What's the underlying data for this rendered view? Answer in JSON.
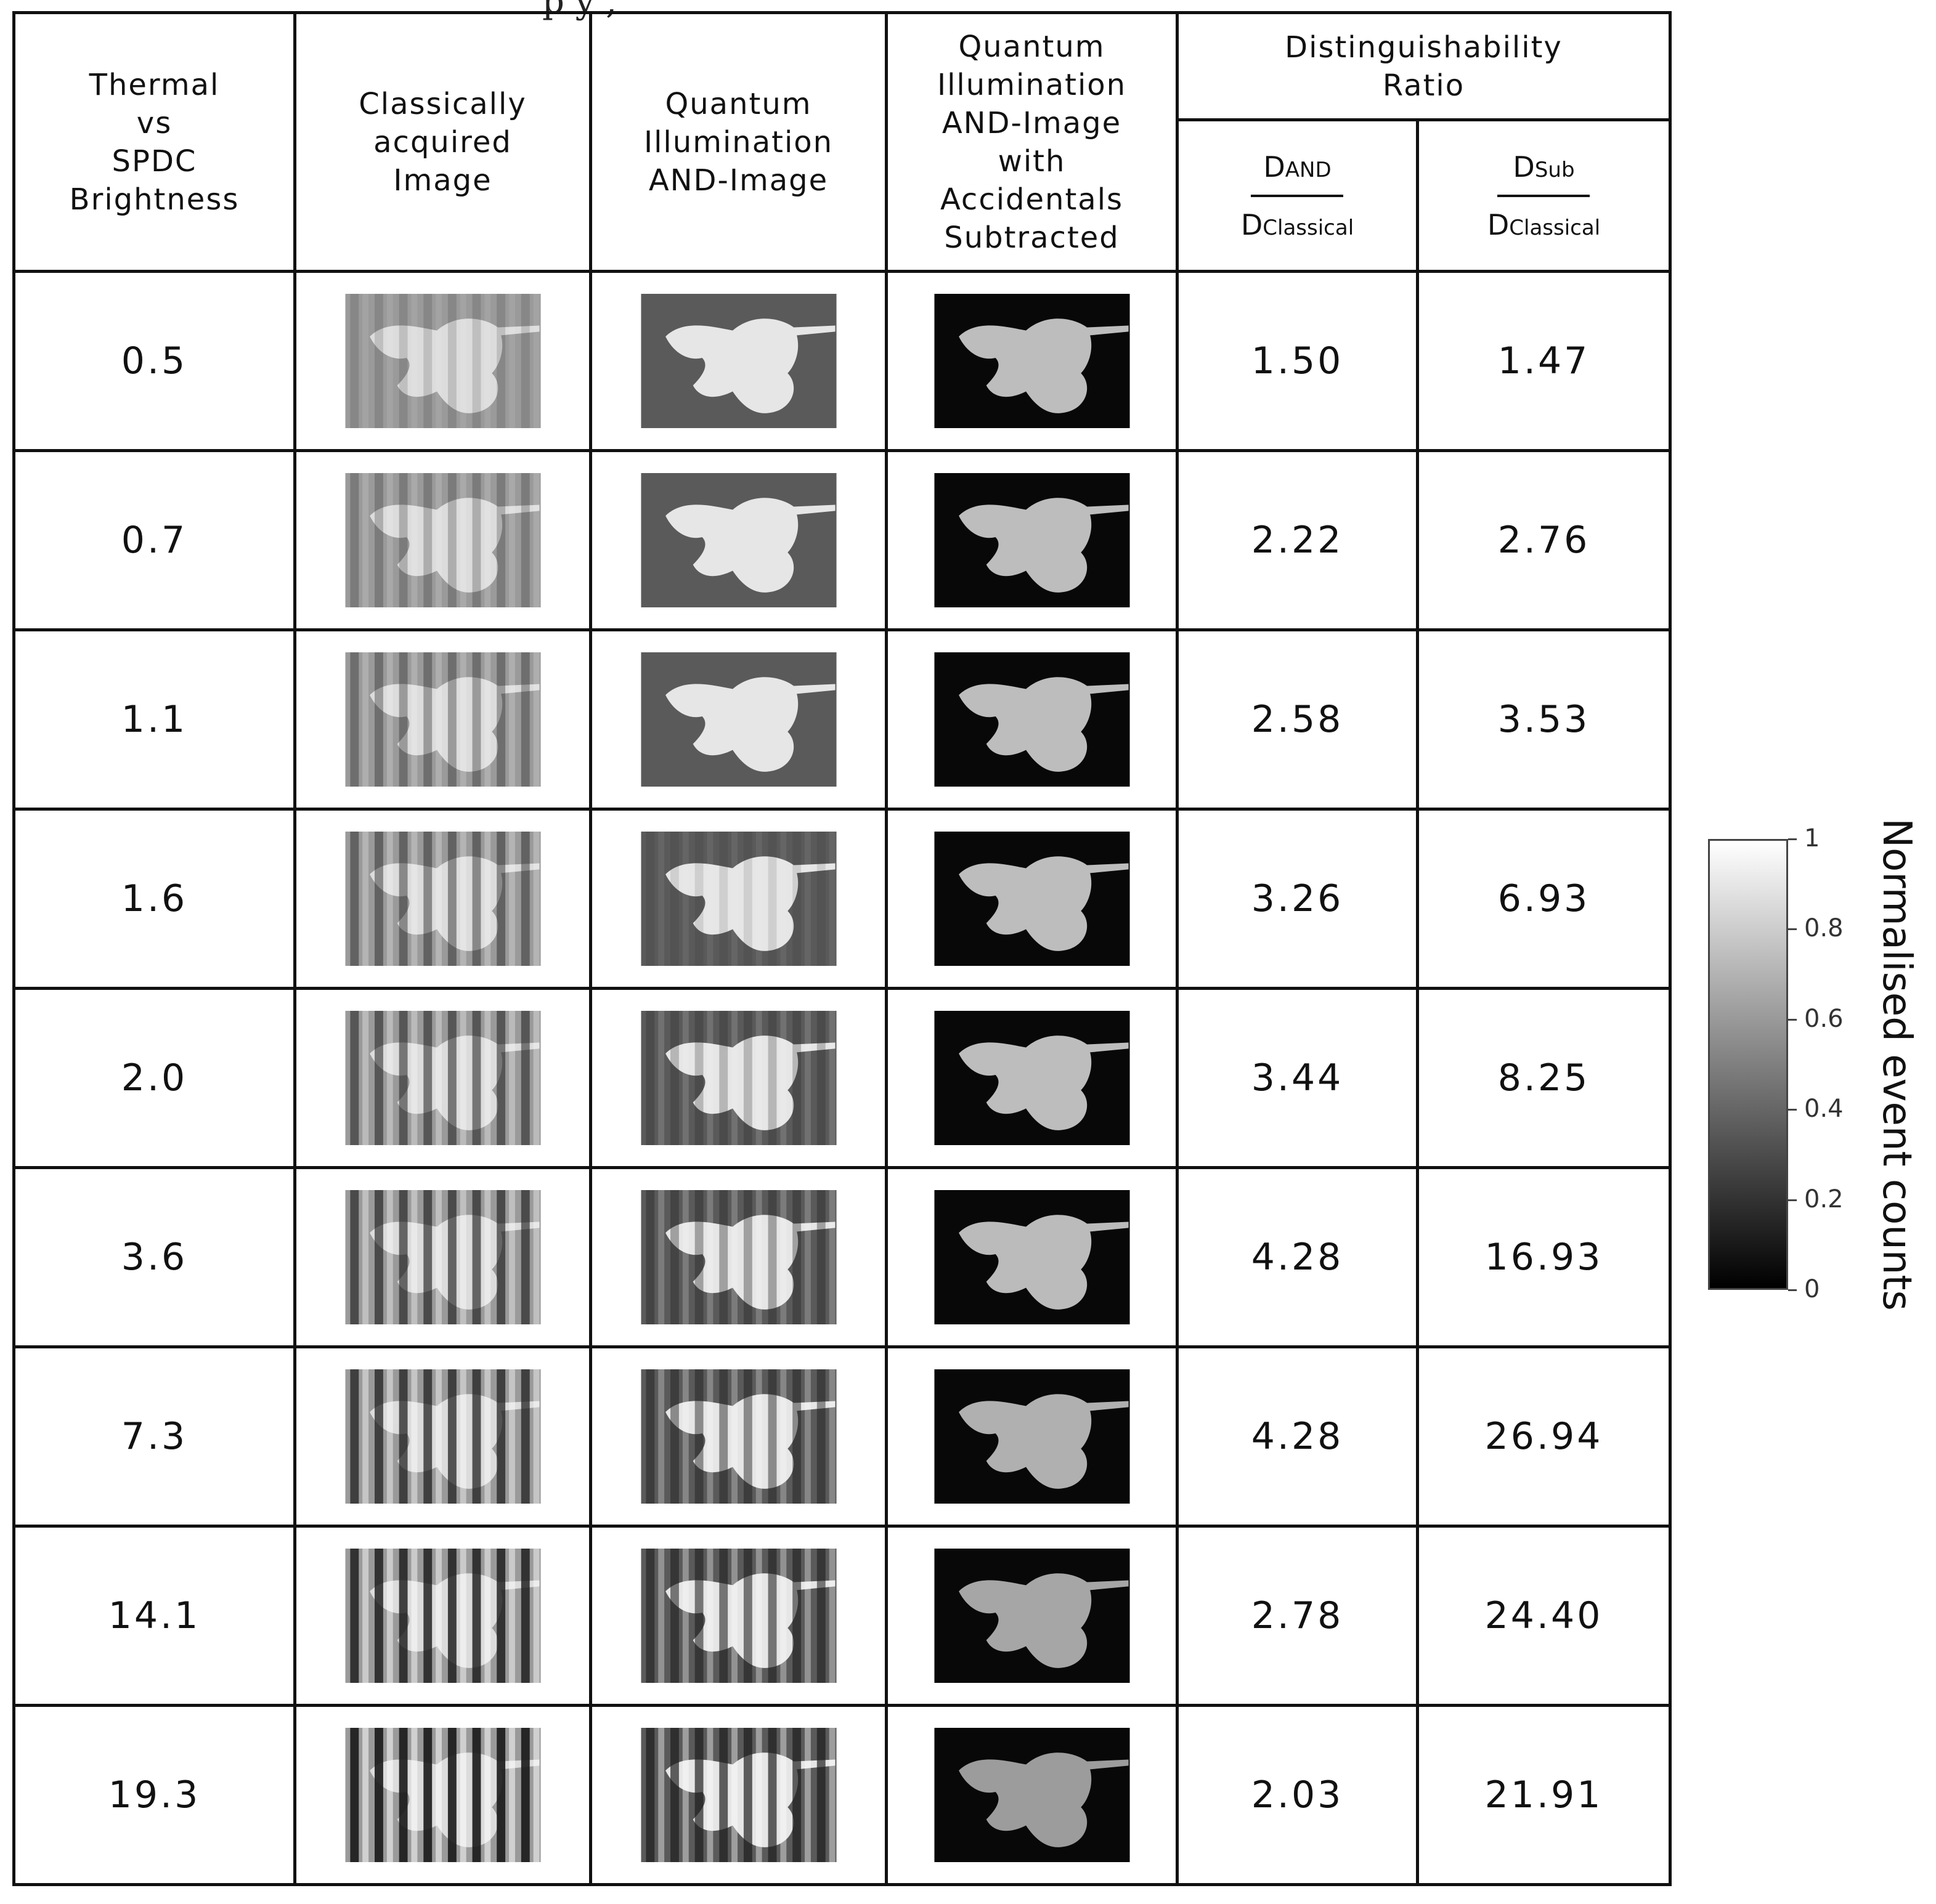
{
  "caption_fragment": "p  y ,",
  "header": {
    "col1": [
      "Thermal",
      "vs",
      "SPDC",
      "Brightness"
    ],
    "col2": [
      "Classically",
      "acquired",
      "Image"
    ],
    "col3": [
      "Quantum",
      "Illumination",
      "AND-Image"
    ],
    "col4": [
      "Quantum",
      "Illumination",
      "AND-Image",
      "with",
      "Accidentals",
      "Subtracted"
    ],
    "group": [
      "Distinguishability",
      "Ratio"
    ],
    "ratio_and": {
      "num_main": "D",
      "num_sub": "AND",
      "den_main": "D",
      "den_sub": "Classical"
    },
    "ratio_sub": {
      "num_main": "D",
      "num_sub": "Sub",
      "den_main": "D",
      "den_sub": "Classical"
    }
  },
  "chart_data": {
    "type": "table",
    "columns": [
      "Thermal vs SPDC Brightness",
      "Classically acquired Image",
      "Quantum Illumination AND-Image",
      "Quantum Illumination AND-Image with Accidentals Subtracted",
      "DAND / DClassical",
      "DSub / DClassical"
    ],
    "rows": [
      {
        "brightness": "0.5",
        "d_and": "1.50",
        "d_sub": "1.47"
      },
      {
        "brightness": "0.7",
        "d_and": "2.22",
        "d_sub": "2.76"
      },
      {
        "brightness": "1.1",
        "d_and": "2.58",
        "d_sub": "3.53"
      },
      {
        "brightness": "1.6",
        "d_and": "3.26",
        "d_sub": "6.93"
      },
      {
        "brightness": "2.0",
        "d_and": "3.44",
        "d_sub": "8.25"
      },
      {
        "brightness": "3.6",
        "d_and": "4.28",
        "d_sub": "16.93"
      },
      {
        "brightness": "7.3",
        "d_and": "4.28",
        "d_sub": "26.94"
      },
      {
        "brightness": "14.1",
        "d_and": "2.78",
        "d_sub": "24.40"
      },
      {
        "brightness": "19.3",
        "d_and": "2.03",
        "d_sub": "21.91"
      }
    ]
  },
  "colorbar": {
    "title": "Normalised event counts",
    "ticks": [
      "1",
      "0.8",
      "0.6",
      "0.4",
      "0.2",
      "0"
    ]
  }
}
